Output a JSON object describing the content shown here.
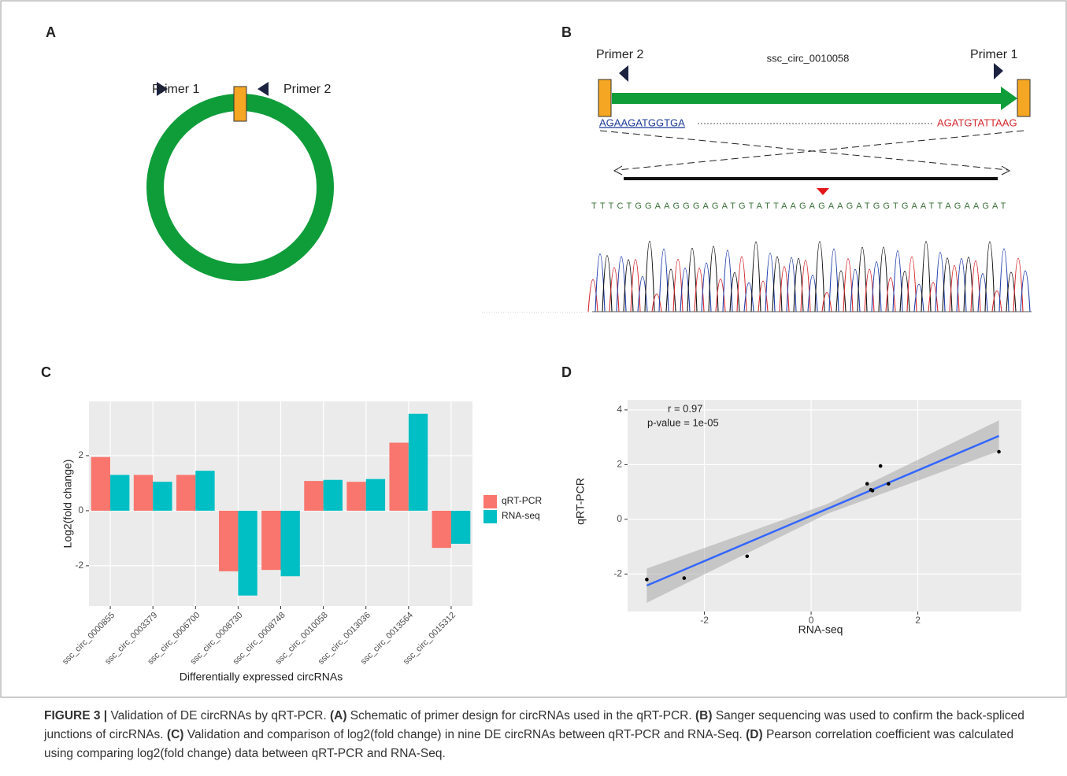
{
  "panel_labels": [
    "A",
    "B",
    "C",
    "D"
  ],
  "panel_a": {
    "primer_1": "Primer 1",
    "primer_2": "Primer 2"
  },
  "panel_b": {
    "primer_2": "Primer 2",
    "title": "ssc_circ_0010058",
    "primer_1": "Primer 1",
    "left_seq": "AGAAGATGGTGA",
    "right_seq": "AGATGTATTAAG",
    "read": "TTTCTGGAAGGGAGATGTATTAAGAGAAGATGGTGAATTAGAAGAT"
  },
  "chart_data": [
    {
      "type": "bar",
      "x_label": "Differentially expressed circRNAs",
      "y_label": "Log2(fold change)",
      "categories": [
        "ssc_circ_0000855",
        "ssc_circ_0003379",
        "ssc_circ_0006700",
        "ssc_circ_0008730",
        "ssc_circ_0008748",
        "ssc_circ_0010058",
        "ssc_circ_0013036",
        "ssc_circ_0013564",
        "ssc_circ_0015312"
      ],
      "series": [
        {
          "name": "qRT-PCR",
          "color": "#F8766D",
          "values": [
            1.95,
            1.3,
            1.3,
            -2.2,
            -2.15,
            1.08,
            1.05,
            2.47,
            -1.35
          ]
        },
        {
          "name": "RNA-seq",
          "color": "#00BFC4",
          "values": [
            1.3,
            1.05,
            1.45,
            -3.08,
            -2.38,
            1.12,
            1.15,
            3.52,
            -1.2
          ]
        }
      ],
      "ylim": [
        -3.46,
        3.97
      ],
      "yticks": [
        -2,
        0,
        2
      ],
      "grid": true,
      "legend": "right"
    },
    {
      "type": "scatter",
      "x_label": "RNA-seq",
      "y_label": "qRT-PCR",
      "x": [
        1.3,
        1.05,
        1.45,
        -3.08,
        -2.38,
        1.12,
        1.15,
        3.52,
        -1.2
      ],
      "values": [
        1.95,
        1.3,
        1.3,
        -2.2,
        -2.15,
        1.08,
        1.05,
        2.47,
        -1.35
      ],
      "color": "#000000",
      "xlim": [
        -3.44,
        3.94
      ],
      "ylim": [
        -3.37,
        4.37
      ],
      "xticks": [
        -2,
        0,
        2
      ],
      "yticks": [
        -2,
        0,
        2,
        4
      ],
      "grid": true,
      "annotations": [
        "r = 0.97",
        "p-value = 1e-05"
      ],
      "fit": {
        "color": "#3366FF",
        "x": [
          -3.08,
          3.52
        ],
        "y": [
          -2.42,
          3.05
        ]
      },
      "band": {
        "x": [
          -3.08,
          0.3,
          3.52
        ],
        "lower": [
          -3.05,
          0.2,
          2.5
        ],
        "upper": [
          -1.8,
          0.56,
          3.62
        ]
      }
    }
  ],
  "caption": {
    "label": "FIGURE 3 |",
    "parts": [
      {
        "text": " Validation of DE circRNAs by qRT-PCR. ",
        "bold": false
      },
      {
        "text": "(A)",
        "bold": true
      },
      {
        "text": " Schematic of primer design for circRNAs used in the qRT-PCR. ",
        "bold": false
      },
      {
        "text": "(B)",
        "bold": true
      },
      {
        "text": " Sanger sequencing was used to confirm the back-spliced junctions of circRNAs. ",
        "bold": false
      },
      {
        "text": "(C)",
        "bold": true
      },
      {
        "text": " Validation and comparison of log2(fold change) in nine DE circRNAs between qRT-PCR and RNA-Seq. ",
        "bold": false
      },
      {
        "text": "(D)",
        "bold": true
      },
      {
        "text": " Pearson correlation coefficient was calculated using comparing log2(fold change) data between qRT-PCR and RNA-Seq.",
        "bold": false
      }
    ]
  }
}
